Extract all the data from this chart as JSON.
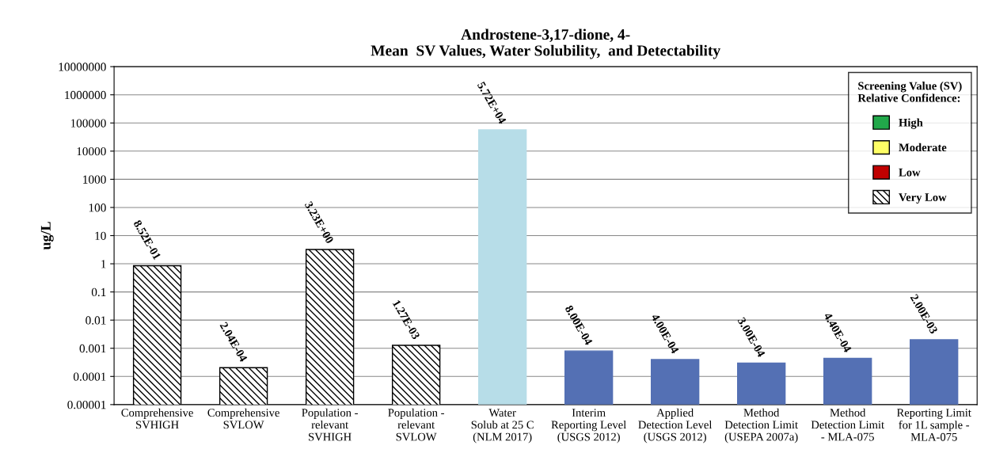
{
  "chart_data": {
    "type": "bar",
    "title": "Androstene-3,17-dione, 4-\nMean  SV Values, Water Solubility,  and Detectability",
    "ylabel": "ug/L",
    "legend_title": "Screening Value (SV)\nRelative Confidence:",
    "categories": [
      "Comprehensive\nSVHIGH",
      "Comprehensive\nSVLOW",
      "Population -\nrelevant\nSVHIGH",
      "Population -\nrelevant\nSVLOW",
      "Water\nSolub at 25 C\n(NLM 2017)",
      "Interim\nReporting Level\n(USGS 2012)",
      "Applied\nDetection Level\n(USGS 2012)",
      "Method\nDetection Limit\n(USEPA 2007a)",
      "Method\nDetection Limit\n- MLA-075",
      "Reporting Limit\nfor 1L sample -\nMLA-075"
    ],
    "series": [
      {
        "name": "High",
        "color": "#21a84a",
        "values": [
          null,
          null,
          null,
          null,
          null,
          null,
          null,
          null,
          null,
          null
        ]
      },
      {
        "name": "Moderate",
        "color": "#ffff66",
        "values": [
          null,
          null,
          null,
          null,
          null,
          null,
          null,
          null,
          null,
          null
        ]
      },
      {
        "name": "Low",
        "color": "#c00000",
        "values": [
          null,
          null,
          null,
          null,
          null,
          null,
          null,
          null,
          null,
          null
        ]
      },
      {
        "name": "Very Low",
        "color": "#000000",
        "values": [
          0.852,
          0.000204,
          3.23,
          0.00127,
          null,
          null,
          null,
          null,
          null,
          null
        ],
        "value_labels": [
          "8.52E-01",
          "2.04E-04",
          "3.23E+00",
          "1.27E-03",
          null,
          null,
          null,
          null,
          null,
          null
        ]
      },
      {
        "color": "#b7dde8",
        "values": [
          null,
          null,
          null,
          null,
          57200,
          null,
          null,
          null,
          null,
          null
        ],
        "value_labels": [
          null,
          null,
          null,
          null,
          "5.72E+04",
          null,
          null,
          null,
          null,
          null
        ]
      },
      {
        "color": "#5470b4",
        "values": [
          null,
          null,
          null,
          null,
          null,
          0.0008,
          0.0004,
          0.0003,
          0.00044,
          0.002
        ],
        "value_labels": [
          null,
          null,
          null,
          null,
          null,
          "8.00E-04",
          "4.00E-04",
          "3.00E-04",
          "4.40E-04",
          "2.00E-03"
        ]
      }
    ],
    "log": "y",
    "ylim": [
      1e-05,
      10000000
    ],
    "yticks": [
      {
        "value": 1e-05,
        "label": "0.00001"
      },
      {
        "value": 0.0001,
        "label": "0.0001"
      },
      {
        "value": 0.001,
        "label": "0.001"
      },
      {
        "value": 0.01,
        "label": "0.01"
      },
      {
        "value": 0.1,
        "label": "0.1"
      },
      1,
      10,
      100,
      1000,
      10000,
      100000,
      1000000,
      10000000
    ],
    "grid": "y",
    "legend": "top right"
  }
}
